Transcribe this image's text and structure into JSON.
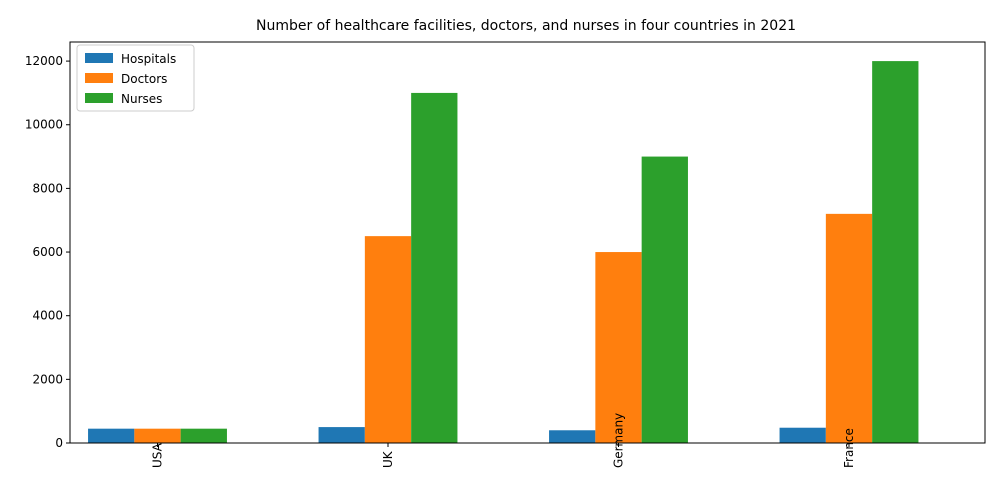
{
  "chart_data": {
    "type": "bar",
    "title": "Number of healthcare facilities, doctors, and nurses in four countries in 2021",
    "xlabel": "",
    "ylabel": "",
    "categories": [
      "USA",
      "UK",
      "Germany",
      "France"
    ],
    "series": [
      {
        "name": "Hospitals",
        "color": "#1f77b4",
        "values": [
          450,
          500,
          400,
          480
        ]
      },
      {
        "name": "Doctors",
        "color": "#ff7f0e",
        "values": [
          450,
          6500,
          6000,
          7200
        ]
      },
      {
        "name": "Nurses",
        "color": "#2ca02c",
        "values": [
          450,
          11000,
          9000,
          12000
        ]
      }
    ],
    "ylim": [
      0,
      12600
    ],
    "yticks": [
      0,
      2000,
      4000,
      6000,
      8000,
      10000,
      12000
    ],
    "grid": false,
    "legend": "top-left",
    "xtick_rotation": 90
  }
}
